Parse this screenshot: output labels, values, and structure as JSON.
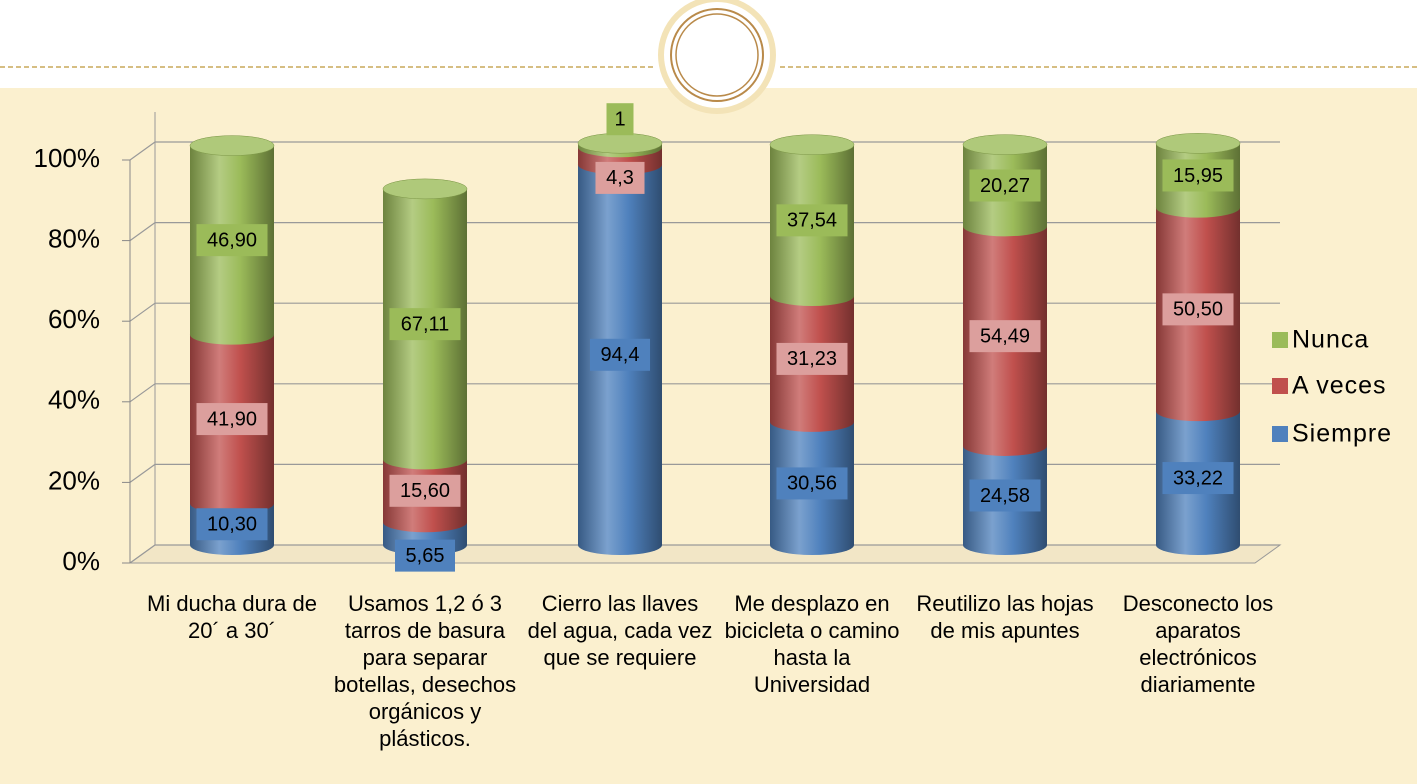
{
  "chart_data": {
    "type": "stacked_cylinder",
    "categories": [
      "Mi ducha dura de 20´ a 30´",
      "Usamos 1,2 ó 3 tarros de basura para separar botellas, desechos orgánicos y plásticos.",
      "Cierro las llaves del agua, cada vez que se requiere",
      "Me desplazo en bicicleta o camino hasta la Universidad",
      "Reutilizo las hojas de mis apuntes",
      "Desconecto los aparatos electrónicos diariamente"
    ],
    "series": [
      {
        "name": "Siempre",
        "color": "#4f81bd",
        "values": [
          10.3,
          5.65,
          94.4,
          30.56,
          24.58,
          33.22
        ],
        "value_labels": [
          "10,30",
          "5,65",
          "94,4",
          "30,56",
          "24,58",
          "33,22"
        ]
      },
      {
        "name": "A veces",
        "color": "#c0504d",
        "values": [
          41.9,
          15.6,
          4.3,
          31.23,
          54.49,
          50.5
        ],
        "value_labels": [
          "41,90",
          "15,60",
          "4,3",
          "31,23",
          "54,49",
          "50,50"
        ]
      },
      {
        "name": "Nunca",
        "color": "#9bbb59",
        "values": [
          46.9,
          67.11,
          1,
          37.54,
          20.27,
          15.95
        ],
        "value_labels": [
          "46,90",
          "67,11",
          "1",
          "37,54",
          "20,27",
          "15,95"
        ]
      }
    ],
    "ylim": [
      0,
      100
    ],
    "yticks": [
      {
        "value": 0,
        "label": "0%"
      },
      {
        "value": 20,
        "label": "20%"
      },
      {
        "value": 40,
        "label": "40%"
      },
      {
        "value": 60,
        "label": "60%"
      },
      {
        "value": 80,
        "label": "80%"
      },
      {
        "value": 100,
        "label": "100%"
      }
    ],
    "grid": true,
    "legend": "right"
  }
}
